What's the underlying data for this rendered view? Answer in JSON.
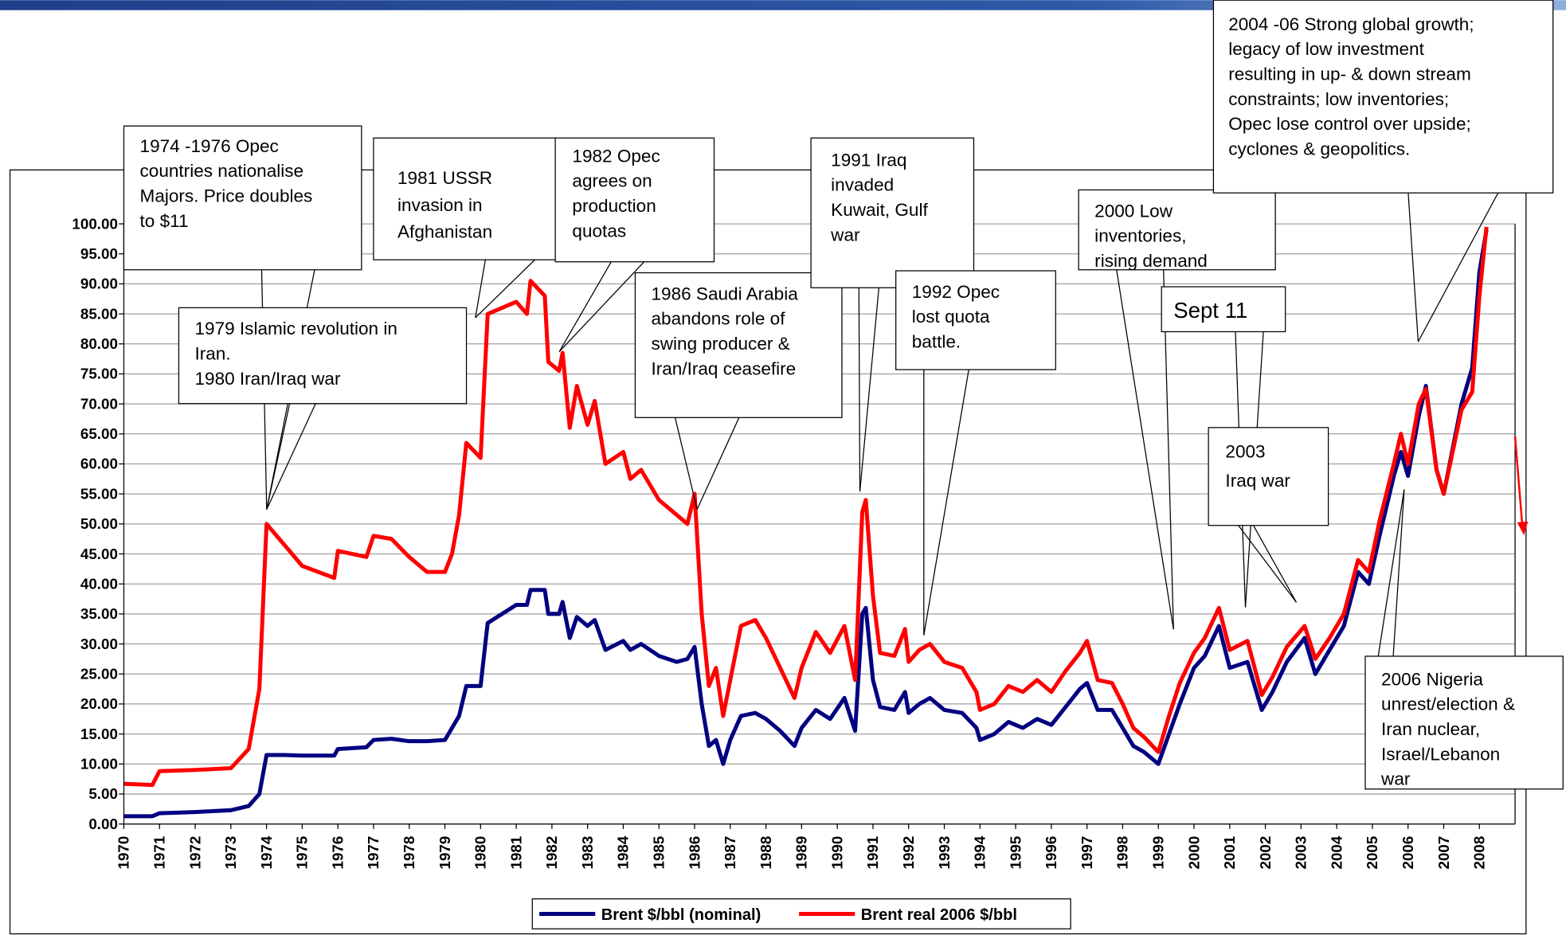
{
  "chart_data": {
    "type": "line",
    "x": [
      1970,
      1970.8,
      1971,
      1972,
      1973,
      1973.5,
      1973.8,
      1974,
      1974.5,
      1975,
      1975.9,
      1976,
      1976.8,
      1977,
      1977.5,
      1978,
      1978.5,
      1979,
      1979.2,
      1979.4,
      1979.6,
      1980,
      1980.2,
      1981,
      1981.3,
      1981.4,
      1981.8,
      1981.9,
      1982.2,
      1982.3,
      1982.5,
      1982.7,
      1983,
      1983.2,
      1983.5,
      1984,
      1984.2,
      1984.5,
      1985,
      1985.5,
      1985.8,
      1986,
      1986.2,
      1986.4,
      1986.6,
      1986.8,
      1987,
      1987.3,
      1987.7,
      1988,
      1988.4,
      1988.8,
      1989,
      1989.4,
      1989.8,
      1990.2,
      1990.5,
      1990.7,
      1990.8,
      1991,
      1991.2,
      1991.6,
      1991.9,
      1992,
      1992.3,
      1992.6,
      1993,
      1993.5,
      1993.9,
      1994,
      1994.4,
      1994.8,
      1995.2,
      1995.6,
      1996,
      1996.4,
      1996.8,
      1997,
      1997.3,
      1997.7,
      1998,
      1998.3,
      1998.6,
      1999,
      1999.3,
      1999.6,
      2000,
      2000.3,
      2000.7,
      2001,
      2001.5,
      2001.9,
      2002.2,
      2002.6,
      2003.1,
      2003.4,
      2003.8,
      2004.2,
      2004.6,
      2004.9,
      2005.2,
      2005.6,
      2005.8,
      2006,
      2006.3,
      2006.5,
      2006.8,
      2007,
      2007.5,
      2007.8,
      2008,
      2008.2
    ],
    "series": [
      {
        "name": "Brent $/bbl (nominal)",
        "color": "#000080",
        "values": [
          1.3,
          1.3,
          1.8,
          2.0,
          2.3,
          3.0,
          5.0,
          11.5,
          11.5,
          11.4,
          11.4,
          12.5,
          12.8,
          14.0,
          14.2,
          13.8,
          13.8,
          14.0,
          16,
          18,
          23,
          23,
          33.5,
          36.5,
          36.5,
          39,
          39,
          35,
          35,
          37,
          31,
          34.5,
          33,
          34,
          29,
          30.5,
          29,
          30,
          28,
          27,
          27.5,
          29.5,
          20,
          13,
          14,
          10,
          14,
          18,
          18.5,
          17.5,
          15.5,
          13,
          16,
          19,
          17.5,
          21,
          15.5,
          35,
          36,
          24,
          19.5,
          19,
          22,
          18.5,
          20,
          21,
          19,
          18.5,
          16,
          14,
          15,
          17,
          16,
          17.5,
          16.5,
          19.5,
          22.5,
          23.5,
          19,
          19,
          16,
          13,
          12,
          10,
          15,
          20,
          26,
          28,
          33,
          26,
          27,
          19,
          22,
          27,
          31,
          25,
          29,
          33,
          42,
          40,
          48,
          58,
          62,
          58,
          68,
          73,
          59,
          55,
          70,
          76,
          92,
          99
        ]
      },
      {
        "name": "Brent real 2006 $/bbl",
        "color": "#ff0000",
        "values": [
          6.7,
          6.5,
          8.8,
          9.0,
          9.3,
          12.5,
          22.5,
          50.0,
          46.5,
          43.0,
          41.0,
          45.5,
          44.5,
          48.0,
          47.5,
          44.5,
          42.0,
          42.0,
          45,
          51.5,
          63.5,
          61,
          85,
          87,
          85,
          90.5,
          88,
          77,
          75.5,
          78.5,
          66,
          73,
          66.5,
          70.5,
          60,
          62,
          57.5,
          59,
          54,
          51.5,
          50,
          55,
          35,
          23,
          26,
          18,
          24,
          33,
          34,
          31,
          26,
          21,
          26,
          32,
          28.5,
          33,
          24,
          52,
          54,
          38,
          28.5,
          28,
          32.5,
          27,
          29,
          30,
          27,
          26,
          22,
          19,
          20,
          23,
          22,
          24,
          22,
          25.5,
          28.5,
          30.5,
          24,
          23.5,
          20,
          16,
          14.5,
          12,
          18,
          23.5,
          28.5,
          31,
          36,
          29,
          30.5,
          21.5,
          24.5,
          29.5,
          33,
          27.5,
          31,
          35,
          44,
          42,
          50.5,
          60,
          65,
          60,
          70,
          72.5,
          59,
          55,
          69,
          72,
          88,
          99.5
        ]
      }
    ],
    "xlim": [
      1970,
      2009
    ],
    "xticks": [
      1970,
      1971,
      1972,
      1973,
      1974,
      1975,
      1976,
      1977,
      1978,
      1979,
      1980,
      1981,
      1982,
      1983,
      1984,
      1985,
      1986,
      1987,
      1988,
      1989,
      1990,
      1991,
      1992,
      1993,
      1994,
      1995,
      1996,
      1997,
      1998,
      1999,
      2000,
      2001,
      2002,
      2003,
      2004,
      2005,
      2006,
      2007,
      2008
    ],
    "ylim": [
      0,
      100
    ],
    "yticks": [
      {
        "value": 0,
        "label": "0.00"
      },
      {
        "value": 5,
        "label": "5.00"
      },
      {
        "value": 10,
        "label": "10.00"
      },
      {
        "value": 15,
        "label": "15.00"
      },
      {
        "value": 20,
        "label": "20.00"
      },
      {
        "value": 25,
        "label": "25.00"
      },
      {
        "value": 30,
        "label": "30.00"
      },
      {
        "value": 35,
        "label": "35.00"
      },
      {
        "value": 40,
        "label": "40.00"
      },
      {
        "value": 45,
        "label": "45.00"
      },
      {
        "value": 50,
        "label": "50.00"
      },
      {
        "value": 55,
        "label": "55.00"
      },
      {
        "value": 60,
        "label": "60.00"
      },
      {
        "value": 65,
        "label": "65.00"
      },
      {
        "value": 70,
        "label": "70.00"
      },
      {
        "value": 75,
        "label": "75.00"
      },
      {
        "value": 80,
        "label": "80.00"
      },
      {
        "value": 85,
        "label": "85.00"
      },
      {
        "value": 90,
        "label": "90.00"
      },
      {
        "value": 95,
        "label": "95.00"
      },
      {
        "value": 100,
        "label": "100.00"
      }
    ],
    "grid": true,
    "legend": "bottom",
    "annotations": [
      [
        "1974 -1976 Opec",
        "countries nationalise",
        "Majors. Price doubles",
        " to $11"
      ],
      [
        "1979 Islamic revolution in",
        "Iran.",
        "1980 Iran/Iraq war"
      ],
      [
        "1981 USSR",
        "invasion in",
        "Afghanistan"
      ],
      [
        "1982 Opec",
        "agrees on",
        "production",
        "quotas"
      ],
      [
        "1986 Saudi Arabia",
        "abandons role of",
        "swing producer &",
        "Iran/Iraq ceasefire"
      ],
      [
        "1991 Iraq",
        "invaded",
        "Kuwait, Gulf",
        "war"
      ],
      [
        "1992 Opec",
        "lost quota",
        "battle."
      ],
      [
        "2000 Low",
        "inventories,",
        " rising demand"
      ],
      [
        "Sept 11"
      ],
      [
        "2003",
        "Iraq war"
      ],
      [
        "2004 -06 Strong global growth;",
        "legacy of low investment",
        "resulting in up- & down stream",
        "constraints; low inventories;",
        "Opec lose control over upside;",
        "cyclones & geopolitics."
      ],
      [
        "2006 Nigeria",
        "unrest/election &",
        "Iran nuclear,",
        "Israel/Lebanon",
        "war"
      ]
    ]
  }
}
